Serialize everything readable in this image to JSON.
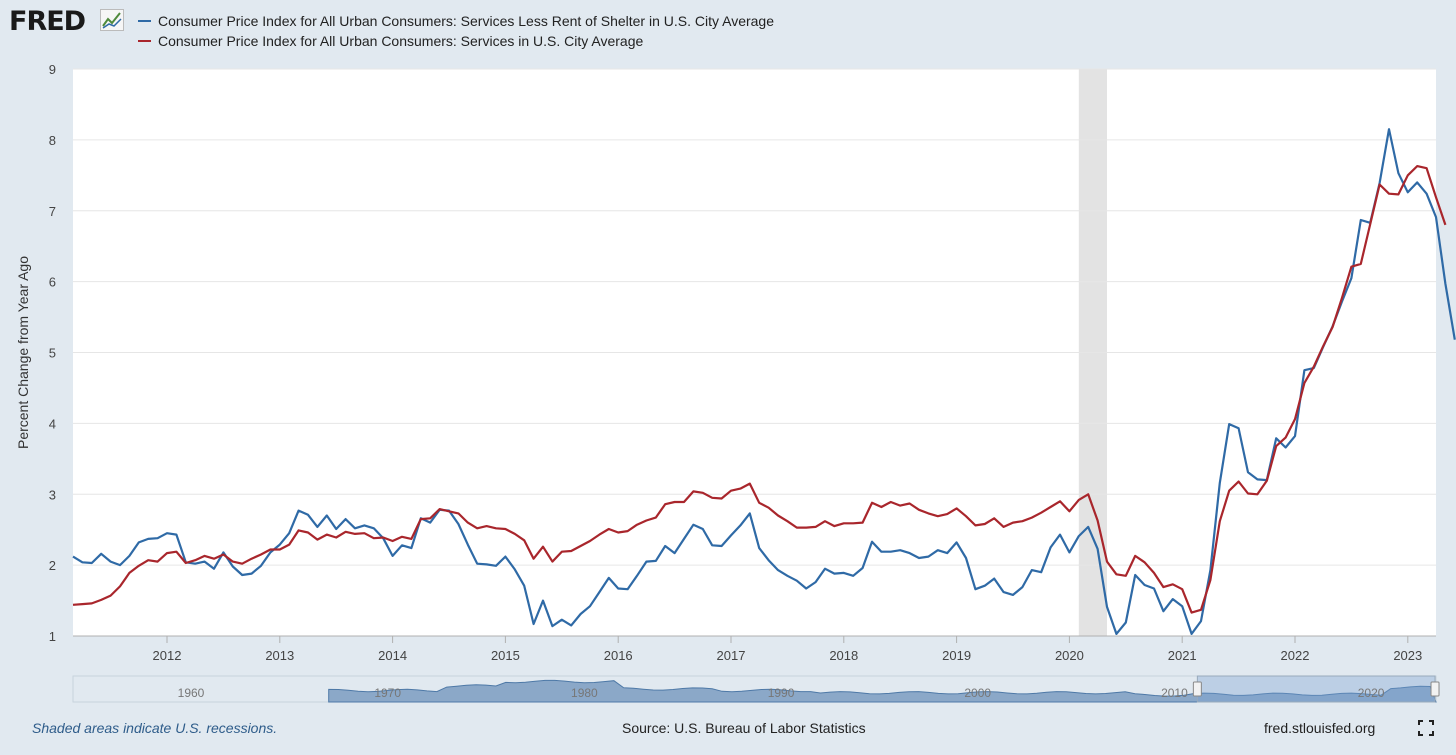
{
  "logo": {
    "text": "FRED"
  },
  "legend": [
    {
      "label": "Consumer Price Index for All Urban Consumers: Services Less Rent of Shelter in U.S. City Average",
      "color": "#2f6aa6"
    },
    {
      "label": "Consumer Price Index for All Urban Consumers: Services in U.S. City Average",
      "color": "#a9262c"
    }
  ],
  "footer": {
    "recession_note": "Shaded areas indicate U.S. recessions.",
    "source": "Source: U.S. Bureau of Labor Statistics",
    "site": "fred.stlouisfed.org",
    "fullscreen_icon": "expand-icon"
  },
  "navigator": {
    "tick_labels": [
      "1960",
      "1970",
      "1980",
      "1990",
      "2000",
      "2010",
      "2020"
    ]
  },
  "chart_data": {
    "type": "line",
    "ylabel": "Percent Change from Year Ago",
    "xlabel": "",
    "x_start": "2011-03",
    "x_end": "2023-04",
    "ylim": [
      1,
      9
    ],
    "y_ticks": [
      1,
      2,
      3,
      4,
      5,
      6,
      7,
      8,
      9
    ],
    "x_ticks": [
      "2012",
      "2013",
      "2014",
      "2015",
      "2016",
      "2017",
      "2018",
      "2019",
      "2020",
      "2021",
      "2022",
      "2023"
    ],
    "grid": true,
    "recessions": [
      [
        "2020-02",
        "2020-04"
      ]
    ],
    "series": [
      {
        "name": "Consumer Price Index for All Urban Consumers: Services Less Rent of Shelter in U.S. City Average",
        "color": "#2f6aa6",
        "values": [
          2.12,
          2.04,
          2.03,
          2.16,
          2.05,
          2.0,
          2.13,
          2.32,
          2.37,
          2.38,
          2.45,
          2.43,
          2.04,
          2.02,
          2.05,
          1.95,
          2.18,
          1.98,
          1.86,
          1.88,
          1.99,
          2.18,
          2.29,
          2.45,
          2.77,
          2.71,
          2.54,
          2.7,
          2.51,
          2.65,
          2.52,
          2.56,
          2.52,
          2.38,
          2.13,
          2.28,
          2.24,
          2.66,
          2.6,
          2.78,
          2.77,
          2.58,
          2.29,
          2.02,
          2.01,
          1.99,
          2.12,
          1.94,
          1.71,
          1.17,
          1.5,
          1.14,
          1.23,
          1.15,
          1.31,
          1.42,
          1.62,
          1.82,
          1.67,
          1.66,
          1.85,
          2.05,
          2.06,
          2.27,
          2.17,
          2.37,
          2.57,
          2.51,
          2.28,
          2.27,
          2.42,
          2.56,
          2.73,
          2.24,
          2.07,
          1.93,
          1.85,
          1.78,
          1.67,
          1.76,
          1.95,
          1.88,
          1.89,
          1.85,
          1.96,
          2.33,
          2.19,
          2.19,
          2.21,
          2.17,
          2.1,
          2.12,
          2.21,
          2.17,
          2.32,
          2.1,
          1.66,
          1.71,
          1.81,
          1.62,
          1.58,
          1.69,
          1.93,
          1.9,
          2.25,
          2.43,
          2.18,
          2.41,
          2.54,
          2.23,
          1.41,
          1.03,
          1.19,
          1.86,
          1.72,
          1.67,
          1.35,
          1.52,
          1.42,
          1.03,
          1.21,
          1.93,
          3.16,
          3.99,
          3.93,
          3.31,
          3.21,
          3.2,
          3.79,
          3.66,
          3.82,
          4.75,
          4.78,
          5.08,
          5.37,
          5.72,
          6.05,
          6.87,
          6.83,
          7.39,
          8.15,
          7.53,
          7.26,
          7.4,
          7.24,
          6.91,
          5.97,
          5.18
        ]
      },
      {
        "name": "Consumer Price Index for All Urban Consumers: Services in U.S. City Average",
        "color": "#a9262c",
        "values": [
          1.44,
          1.45,
          1.46,
          1.51,
          1.57,
          1.7,
          1.89,
          1.99,
          2.07,
          2.05,
          2.17,
          2.19,
          2.03,
          2.07,
          2.13,
          2.09,
          2.15,
          2.05,
          2.02,
          2.09,
          2.15,
          2.22,
          2.22,
          2.29,
          2.49,
          2.46,
          2.36,
          2.43,
          2.39,
          2.47,
          2.44,
          2.45,
          2.38,
          2.39,
          2.34,
          2.4,
          2.37,
          2.65,
          2.66,
          2.79,
          2.76,
          2.73,
          2.6,
          2.52,
          2.55,
          2.52,
          2.51,
          2.44,
          2.35,
          2.09,
          2.26,
          2.05,
          2.19,
          2.2,
          2.27,
          2.34,
          2.43,
          2.51,
          2.46,
          2.48,
          2.57,
          2.63,
          2.67,
          2.86,
          2.89,
          2.89,
          3.04,
          3.02,
          2.95,
          2.94,
          3.05,
          3.08,
          3.15,
          2.88,
          2.81,
          2.7,
          2.62,
          2.53,
          2.53,
          2.54,
          2.62,
          2.55,
          2.59,
          2.59,
          2.6,
          2.88,
          2.82,
          2.89,
          2.84,
          2.87,
          2.78,
          2.73,
          2.69,
          2.72,
          2.8,
          2.69,
          2.56,
          2.58,
          2.66,
          2.54,
          2.6,
          2.62,
          2.67,
          2.74,
          2.82,
          2.9,
          2.76,
          2.92,
          3.0,
          2.63,
          2.05,
          1.87,
          1.85,
          2.13,
          2.04,
          1.89,
          1.69,
          1.73,
          1.66,
          1.33,
          1.37,
          1.79,
          2.62,
          3.05,
          3.18,
          3.01,
          3.0,
          3.19,
          3.68,
          3.8,
          4.06,
          4.57,
          4.8,
          5.09,
          5.36,
          5.77,
          6.21,
          6.25,
          6.81,
          7.37,
          7.24,
          7.23,
          7.5,
          7.63,
          7.6,
          7.19,
          6.8
        ]
      }
    ]
  }
}
